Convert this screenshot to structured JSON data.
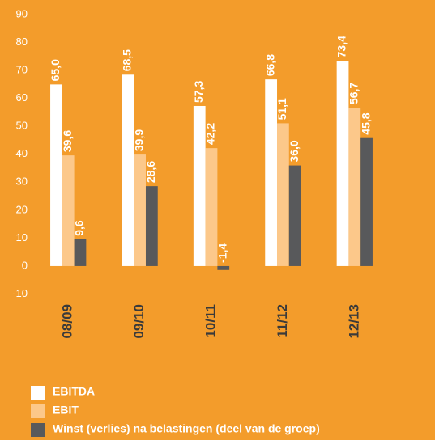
{
  "chart_data": {
    "type": "bar",
    "categories": [
      "08/09",
      "09/10",
      "10/11",
      "11/12",
      "12/13"
    ],
    "series": [
      {
        "name": "EBITDA",
        "color": "#ffffff",
        "values": [
          65.0,
          68.5,
          57.3,
          66.8,
          73.4
        ],
        "value_labels": [
          "65,0",
          "68,5",
          "57,3",
          "66,8",
          "73,4"
        ]
      },
      {
        "name": "EBIT",
        "color": "#fcc88a",
        "values": [
          39.6,
          39.9,
          42.2,
          51.1,
          56.7
        ],
        "value_labels": [
          "39,6",
          "39,9",
          "42,2",
          "51,1",
          "56,7"
        ]
      },
      {
        "name": "Winst (verlies) na belastingen (deel van de groep)",
        "color": "#58595b",
        "values": [
          9.6,
          28.6,
          -1.4,
          36.0,
          45.8
        ],
        "value_labels": [
          "9,6",
          "28,6",
          "-1,4",
          "36,0",
          "45,8"
        ]
      }
    ],
    "ylim": [
      -10,
      90
    ],
    "yticks": [
      -10,
      0,
      10,
      20,
      30,
      40,
      50,
      60,
      70,
      80,
      90
    ],
    "grid": false
  }
}
